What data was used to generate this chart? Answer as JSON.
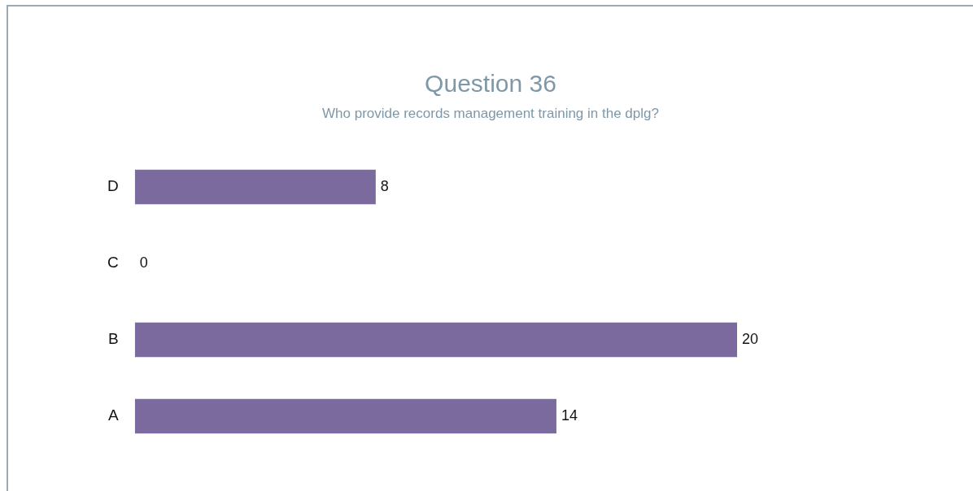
{
  "chart_data": {
    "type": "bar",
    "orientation": "horizontal",
    "title": "Question 36",
    "subtitle": "Who provide records management training in the dplg?",
    "categories": [
      "D",
      "C",
      "B",
      "A"
    ],
    "values": [
      8,
      0,
      20,
      14
    ],
    "color": "#7a6a9e",
    "data_labels": true
  }
}
